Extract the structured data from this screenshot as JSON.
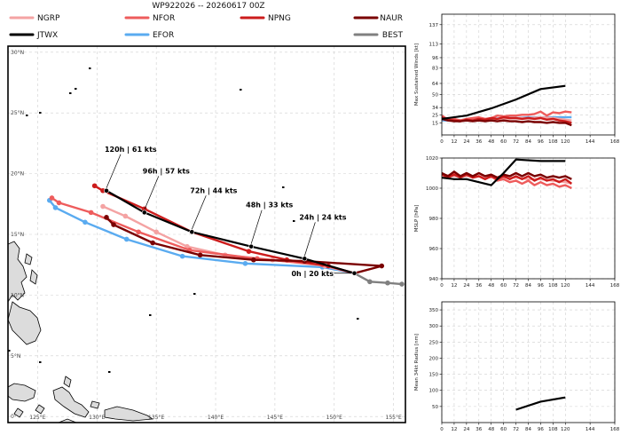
{
  "title": "WP922026 -- 20260617 00Z",
  "legend": [
    {
      "name": "NGRP",
      "color": "#f4a3a3"
    },
    {
      "name": "NFOR",
      "color": "#ee5c5c"
    },
    {
      "name": "NPNG",
      "color": "#cc1c1c"
    },
    {
      "name": "NAUR",
      "color": "#7a0000"
    },
    {
      "name": "JTWX",
      "color": "#000000"
    },
    {
      "name": "EFOR",
      "color": "#5aabf0"
    },
    {
      "name": "BEST",
      "color": "#808080"
    }
  ],
  "chart_data": [
    {
      "type": "line",
      "title": "WP922026 -- 20260617 00Z",
      "xlim": [
        122.5,
        156.0
      ],
      "ylim": [
        -0.5,
        30.5
      ],
      "x_ticks": [
        {
          "value": 125,
          "label": "125°E"
        },
        {
          "value": 130,
          "label": "130°E"
        },
        {
          "value": 135,
          "label": "135°E"
        },
        {
          "value": 140,
          "label": "140°E"
        },
        {
          "value": 145,
          "label": "145°E"
        },
        {
          "value": 150,
          "label": "150°E"
        },
        {
          "value": 155,
          "label": "155°E"
        }
      ],
      "y_ticks": [
        {
          "value": 0,
          "label": "0°"
        },
        {
          "value": 5,
          "label": "5°N"
        },
        {
          "value": 10,
          "label": "10°N"
        },
        {
          "value": 15,
          "label": "15°N"
        },
        {
          "value": 20,
          "label": "20°N"
        },
        {
          "value": 25,
          "label": "25°N"
        },
        {
          "value": 30,
          "label": "30°N"
        }
      ],
      "grid": true,
      "series": [
        {
          "name": "BEST",
          "color": "#808080",
          "points": [
            [
              151.7,
              11.8
            ],
            [
              153.0,
              11.1
            ],
            [
              154.5,
              11.0
            ],
            [
              155.7,
              10.9
            ]
          ]
        },
        {
          "name": "NGRP",
          "color": "#f4a3a3",
          "points": [
            [
              151.7,
              11.8
            ],
            [
              149.2,
              12.4
            ],
            [
              144.8,
              12.9
            ],
            [
              140.8,
              13.3
            ],
            [
              137.6,
              14.0
            ],
            [
              135.0,
              15.2
            ],
            [
              132.4,
              16.5
            ],
            [
              130.5,
              17.3
            ]
          ]
        },
        {
          "name": "NFOR",
          "color": "#ee5c5c",
          "points": [
            [
              151.7,
              11.8
            ],
            [
              149.0,
              12.5
            ],
            [
              143.5,
              13.0
            ],
            [
              137.8,
              13.7
            ],
            [
              133.5,
              15.2
            ],
            [
              129.5,
              16.8
            ],
            [
              126.8,
              17.6
            ],
            [
              126.2,
              18.0
            ]
          ]
        },
        {
          "name": "EFOR",
          "color": "#5aabf0",
          "points": [
            [
              151.7,
              11.8
            ],
            [
              149.0,
              12.3
            ],
            [
              142.5,
              12.6
            ],
            [
              137.2,
              13.2
            ],
            [
              132.5,
              14.6
            ],
            [
              129.0,
              16.0
            ],
            [
              126.5,
              17.2
            ],
            [
              126.0,
              17.8
            ]
          ]
        },
        {
          "name": "NPNG",
          "color": "#cc1c1c",
          "points": [
            [
              151.7,
              11.8
            ],
            [
              149.5,
              12.4
            ],
            [
              146.0,
              12.9
            ],
            [
              142.8,
              13.6
            ],
            [
              138.0,
              15.2
            ],
            [
              134.0,
              17.1
            ],
            [
              130.5,
              18.6
            ],
            [
              129.8,
              19.0
            ]
          ]
        },
        {
          "name": "NAUR",
          "color": "#7a0000",
          "points": [
            [
              151.7,
              11.8
            ],
            [
              154.0,
              12.4
            ],
            [
              147.5,
              12.8
            ],
            [
              143.2,
              12.9
            ],
            [
              138.7,
              13.3
            ],
            [
              134.7,
              14.3
            ],
            [
              131.4,
              15.8
            ],
            [
              130.8,
              16.4
            ]
          ]
        },
        {
          "name": "JTWX",
          "color": "#000000",
          "points": [
            [
              151.7,
              11.8
            ],
            [
              147.5,
              13.0
            ],
            [
              143.0,
              14.0
            ],
            [
              138.0,
              15.2
            ],
            [
              134.0,
              16.8
            ],
            [
              130.8,
              18.6
            ]
          ]
        }
      ],
      "annotations": [
        {
          "text": "0h | 20 kts",
          "x": 151.7,
          "y": 11.8
        },
        {
          "text": "24h | 24 kts",
          "x": 147.5,
          "y": 13.0
        },
        {
          "text": "48h | 33 kts",
          "x": 143.0,
          "y": 14.0
        },
        {
          "text": "72h | 44 kts",
          "x": 138.0,
          "y": 15.2
        },
        {
          "text": "96h | 57 kts",
          "x": 134.0,
          "y": 16.8
        },
        {
          "text": "120h | 61 kts",
          "x": 130.8,
          "y": 18.6
        }
      ]
    },
    {
      "type": "line",
      "ylabel": "Max Sustained Winds [kt]",
      "xlim": [
        0,
        168
      ],
      "ylim": [
        0,
        150
      ],
      "x_ticks": [
        0,
        12,
        24,
        36,
        48,
        60,
        72,
        84,
        96,
        108,
        120,
        144,
        168
      ],
      "y_ticks": [
        15,
        25,
        34,
        50,
        64,
        83,
        96,
        113,
        137
      ],
      "grid": true,
      "series": [
        {
          "name": "JTWX",
          "color": "#000000",
          "x": [
            0,
            24,
            48,
            72,
            96,
            120
          ],
          "values": [
            20,
            24,
            33,
            44,
            57,
            61
          ]
        },
        {
          "name": "EFOR",
          "color": "#5aabf0",
          "x": [
            0,
            12,
            24,
            36,
            48,
            60,
            72,
            84,
            96,
            108,
            120,
            126
          ],
          "values": [
            18,
            18,
            19,
            19,
            20,
            21,
            21,
            22,
            22,
            22,
            22,
            22
          ]
        },
        {
          "name": "NGRP",
          "color": "#f4a3a3",
          "x": [
            0,
            12,
            24,
            36,
            48,
            60,
            72,
            84,
            96,
            108,
            120,
            126
          ],
          "values": [
            20,
            19,
            18,
            19,
            20,
            20,
            21,
            21,
            22,
            21,
            19,
            18
          ]
        },
        {
          "name": "NFOR",
          "color": "#ee5c5c",
          "x": [
            0,
            6,
            12,
            18,
            24,
            30,
            36,
            42,
            48,
            54,
            60,
            66,
            72,
            78,
            84,
            90,
            96,
            102,
            108,
            114,
            120,
            126
          ],
          "values": [
            24,
            19,
            20,
            18,
            20,
            21,
            22,
            20,
            21,
            24,
            23,
            24,
            24,
            25,
            25,
            26,
            29,
            24,
            28,
            27,
            29,
            28
          ]
        },
        {
          "name": "NPNG",
          "color": "#cc1c1c",
          "x": [
            0,
            6,
            12,
            18,
            24,
            30,
            36,
            42,
            48,
            54,
            60,
            66,
            72,
            78,
            84,
            90,
            96,
            102,
            108,
            114,
            120,
            126
          ],
          "values": [
            22,
            19,
            18,
            17,
            19,
            18,
            20,
            19,
            21,
            20,
            22,
            21,
            21,
            20,
            21,
            20,
            21,
            19,
            20,
            18,
            17,
            15
          ]
        },
        {
          "name": "NAUR",
          "color": "#7a0000",
          "x": [
            0,
            6,
            12,
            18,
            24,
            30,
            36,
            42,
            48,
            54,
            60,
            66,
            72,
            78,
            84,
            90,
            96,
            102,
            108,
            114,
            120,
            126
          ],
          "values": [
            20,
            18,
            17,
            17,
            18,
            17,
            18,
            17,
            18,
            17,
            18,
            17,
            17,
            16,
            17,
            16,
            16,
            15,
            16,
            15,
            15,
            12
          ]
        }
      ]
    },
    {
      "type": "line",
      "ylabel": "MSLP [hPa]",
      "xlim": [
        0,
        168
      ],
      "ylim": [
        940,
        1020
      ],
      "x_ticks": [
        0,
        12,
        24,
        36,
        48,
        60,
        72,
        84,
        96,
        108,
        120,
        144,
        168
      ],
      "y_ticks": [
        940,
        960,
        980,
        1000,
        1020
      ],
      "grid": true,
      "series": [
        {
          "name": "JTWX",
          "color": "#000000",
          "x": [
            0,
            12,
            24,
            36,
            48,
            60,
            72,
            96,
            120
          ],
          "values": [
            1007,
            1006,
            1006,
            1004,
            1002,
            1010,
            1019,
            1018,
            1018
          ]
        },
        {
          "name": "NGRP",
          "color": "#f4a3a3",
          "x": [
            0,
            12,
            24,
            36,
            48,
            60,
            72,
            84,
            96,
            108,
            120,
            126
          ],
          "values": [
            1009,
            1008,
            1008,
            1008,
            1007,
            1007,
            1007,
            1006,
            1006,
            1005,
            1004,
            1003
          ]
        },
        {
          "name": "NFOR",
          "color": "#ee5c5c",
          "x": [
            0,
            6,
            12,
            18,
            24,
            30,
            36,
            42,
            48,
            54,
            60,
            66,
            72,
            78,
            84,
            90,
            96,
            102,
            108,
            114,
            120,
            126
          ],
          "values": [
            1009,
            1008,
            1010,
            1007,
            1009,
            1007,
            1008,
            1006,
            1008,
            1005,
            1006,
            1004,
            1005,
            1003,
            1005,
            1002,
            1004,
            1002,
            1003,
            1001,
            1002,
            1000
          ]
        },
        {
          "name": "NPNG",
          "color": "#cc1c1c",
          "x": [
            0,
            6,
            12,
            18,
            24,
            30,
            36,
            42,
            48,
            54,
            60,
            66,
            72,
            78,
            84,
            90,
            96,
            102,
            108,
            114,
            120,
            126
          ],
          "values": [
            1009,
            1007,
            1009,
            1007,
            1009,
            1007,
            1008,
            1006,
            1008,
            1006,
            1008,
            1006,
            1008,
            1006,
            1008,
            1005,
            1007,
            1005,
            1006,
            1004,
            1006,
            1003
          ]
        },
        {
          "name": "NAUR",
          "color": "#7a0000",
          "x": [
            0,
            6,
            12,
            18,
            24,
            30,
            36,
            42,
            48,
            54,
            60,
            66,
            72,
            78,
            84,
            90,
            96,
            102,
            108,
            114,
            120,
            126
          ],
          "values": [
            1010,
            1008,
            1011,
            1008,
            1010,
            1008,
            1010,
            1008,
            1009,
            1007,
            1009,
            1008,
            1010,
            1008,
            1010,
            1008,
            1009,
            1007,
            1008,
            1007,
            1008,
            1006
          ]
        }
      ]
    },
    {
      "type": "line",
      "ylabel": "Mean 34kt Radius [nm]",
      "xlim": [
        0,
        168
      ],
      "ylim": [
        0,
        375
      ],
      "x_ticks": [
        0,
        12,
        24,
        36,
        48,
        60,
        72,
        84,
        96,
        108,
        120,
        144,
        168
      ],
      "y_ticks": [
        50,
        100,
        150,
        200,
        250,
        300,
        350
      ],
      "grid": true,
      "series": [
        {
          "name": "JTWX",
          "color": "#000000",
          "x": [
            72,
            96,
            120
          ],
          "values": [
            40,
            65,
            78
          ]
        }
      ]
    }
  ]
}
